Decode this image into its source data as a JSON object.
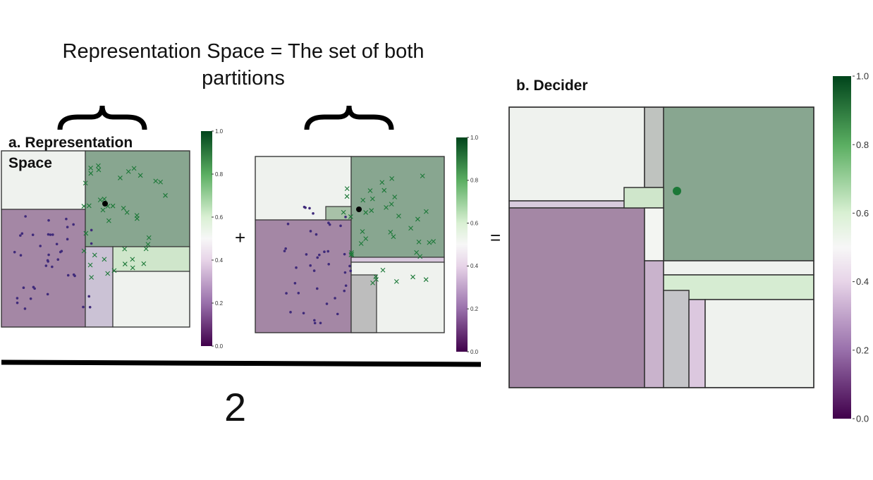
{
  "title": "Representation Space = The set of both partitions",
  "panel_a": {
    "label": "a. Representation Space"
  },
  "panel_b": {
    "label": "b. Decider"
  },
  "operators": {
    "plus": "+",
    "equals": "=",
    "denominator": "2"
  },
  "colorbar_ticks": [
    "0.0",
    "0.2",
    "0.4",
    "0.6",
    "0.8",
    "1.0"
  ]
}
